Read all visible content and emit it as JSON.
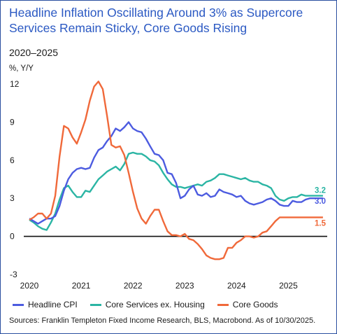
{
  "title": "Headline Inflation Oscillating Around 3% as Supercore Services Remain Sticky, Core Goods Rising",
  "subtitle": "2020–2025",
  "source": "Sources: Franklin Templeton Fixed Income Research, BLS, Macrobond. As of 10/30/2025.",
  "chart_data": {
    "type": "line",
    "ylabel": "%, Y/Y",
    "ylim": [
      -3,
      12
    ],
    "yticks": [
      -3,
      0,
      3,
      6,
      9,
      12
    ],
    "xlim": [
      2020.0,
      2025.75
    ],
    "xticks": [
      2020,
      2021,
      2022,
      2023,
      2024,
      2025
    ],
    "zero_line": true,
    "series": [
      {
        "name": "Headline CPI",
        "color": "#4c5be0",
        "end_label": "3.0",
        "x": [
          2020.0,
          2020.083,
          2020.167,
          2020.25,
          2020.333,
          2020.417,
          2020.5,
          2020.583,
          2020.667,
          2020.75,
          2020.833,
          2020.917,
          2021.0,
          2021.083,
          2021.167,
          2021.25,
          2021.333,
          2021.417,
          2021.5,
          2021.583,
          2021.667,
          2021.75,
          2021.833,
          2021.917,
          2022.0,
          2022.083,
          2022.167,
          2022.25,
          2022.333,
          2022.417,
          2022.5,
          2022.583,
          2022.667,
          2022.75,
          2022.833,
          2022.917,
          2023.0,
          2023.083,
          2023.167,
          2023.25,
          2023.333,
          2023.417,
          2023.5,
          2023.583,
          2023.667,
          2023.75,
          2023.833,
          2023.917,
          2024.0,
          2024.083,
          2024.167,
          2024.25,
          2024.333,
          2024.417,
          2024.5,
          2024.583,
          2024.667,
          2024.75,
          2024.833,
          2024.917,
          2025.0,
          2025.083,
          2025.167,
          2025.25,
          2025.333,
          2025.417,
          2025.5,
          2025.583,
          2025.667
        ],
        "values": [
          1.4,
          1.2,
          1.0,
          1.2,
          1.4,
          1.4,
          1.6,
          2.4,
          3.6,
          4.5,
          5.0,
          5.3,
          5.4,
          5.3,
          5.4,
          6.2,
          6.8,
          7.0,
          7.5,
          7.9,
          8.5,
          8.3,
          8.6,
          9.0,
          8.5,
          8.3,
          8.2,
          7.7,
          7.1,
          6.5,
          6.4,
          6.0,
          5.0,
          4.9,
          4.2,
          3.0,
          3.2,
          3.7,
          4.0,
          3.3,
          3.2,
          3.4,
          3.1,
          3.2,
          3.7,
          3.5,
          3.4,
          3.3,
          3.1,
          3.2,
          2.8,
          2.6,
          2.5,
          2.6,
          2.7,
          2.9,
          3.0,
          2.8,
          2.5,
          2.4,
          2.4,
          2.8,
          2.7,
          2.7,
          2.9,
          3.0,
          3.0,
          3.0,
          3.0
        ]
      },
      {
        "name": "Core Services ex. Housing",
        "color": "#2bb5a4",
        "end_label": "3.2",
        "x": [
          2020.0,
          2020.083,
          2020.167,
          2020.25,
          2020.333,
          2020.417,
          2020.5,
          2020.583,
          2020.667,
          2020.75,
          2020.833,
          2020.917,
          2021.0,
          2021.083,
          2021.167,
          2021.25,
          2021.333,
          2021.417,
          2021.5,
          2021.583,
          2021.667,
          2021.75,
          2021.833,
          2021.917,
          2022.0,
          2022.083,
          2022.167,
          2022.25,
          2022.333,
          2022.417,
          2022.5,
          2022.583,
          2022.667,
          2022.75,
          2022.833,
          2022.917,
          2023.0,
          2023.083,
          2023.167,
          2023.25,
          2023.333,
          2023.417,
          2023.5,
          2023.583,
          2023.667,
          2023.75,
          2023.833,
          2023.917,
          2024.0,
          2024.083,
          2024.167,
          2024.25,
          2024.333,
          2024.417,
          2024.5,
          2024.583,
          2024.667,
          2024.75,
          2024.833,
          2024.917,
          2025.0,
          2025.083,
          2025.167,
          2025.25,
          2025.333,
          2025.417,
          2025.5,
          2025.583,
          2025.667
        ],
        "values": [
          1.3,
          1.1,
          0.8,
          0.6,
          0.5,
          1.1,
          1.8,
          2.9,
          3.8,
          4.0,
          3.5,
          3.1,
          3.1,
          3.6,
          3.5,
          4.0,
          4.5,
          4.8,
          5.1,
          5.3,
          5.5,
          5.2,
          5.7,
          6.5,
          6.6,
          6.5,
          6.5,
          6.3,
          6.0,
          5.9,
          5.6,
          5.0,
          4.5,
          4.1,
          3.9,
          3.9,
          3.8,
          3.9,
          4.0,
          4.1,
          4.0,
          4.3,
          4.4,
          4.6,
          4.9,
          4.9,
          4.8,
          4.7,
          4.6,
          4.5,
          4.6,
          4.4,
          4.3,
          4.3,
          4.1,
          4.0,
          3.8,
          3.2,
          2.9,
          2.8,
          3.0,
          3.1,
          3.1,
          3.3,
          3.2,
          3.2,
          3.2,
          3.2,
          3.2
        ]
      },
      {
        "name": "Core Goods",
        "color": "#f0693a",
        "end_label": "1.5",
        "x": [
          2020.0,
          2020.083,
          2020.167,
          2020.25,
          2020.333,
          2020.417,
          2020.5,
          2020.583,
          2020.667,
          2020.75,
          2020.833,
          2020.917,
          2021.0,
          2021.083,
          2021.167,
          2021.25,
          2021.333,
          2021.417,
          2021.5,
          2021.583,
          2021.667,
          2021.75,
          2021.833,
          2021.917,
          2022.0,
          2022.083,
          2022.167,
          2022.25,
          2022.333,
          2022.417,
          2022.5,
          2022.583,
          2022.667,
          2022.75,
          2022.833,
          2022.917,
          2023.0,
          2023.083,
          2023.167,
          2023.25,
          2023.333,
          2023.417,
          2023.5,
          2023.583,
          2023.667,
          2023.75,
          2023.833,
          2023.917,
          2024.0,
          2024.083,
          2024.167,
          2024.25,
          2024.333,
          2024.417,
          2024.5,
          2024.583,
          2024.667,
          2024.75,
          2024.833,
          2024.917,
          2025.0,
          2025.083,
          2025.167,
          2025.25,
          2025.333,
          2025.417,
          2025.5,
          2025.583,
          2025.667
        ],
        "values": [
          1.3,
          1.5,
          1.8,
          1.8,
          1.4,
          1.8,
          3.2,
          6.3,
          8.7,
          8.5,
          7.8,
          7.3,
          8.2,
          9.2,
          10.7,
          11.8,
          12.2,
          11.6,
          9.5,
          7.2,
          7.0,
          7.1,
          6.4,
          5.0,
          3.5,
          2.2,
          1.4,
          1.0,
          1.6,
          2.1,
          2.1,
          1.2,
          0.4,
          0.1,
          0.1,
          0.0,
          0.2,
          -0.2,
          -0.3,
          -0.6,
          -1.0,
          -1.5,
          -1.7,
          -1.8,
          -1.8,
          -1.7,
          -0.9,
          -0.9,
          -0.5,
          -0.3,
          0.0,
          0.0,
          -0.1,
          0.0,
          0.3,
          0.4,
          0.8,
          1.2,
          1.5,
          1.5,
          1.5,
          1.5,
          1.5,
          1.5,
          1.5,
          1.5,
          1.5,
          1.5,
          1.5
        ]
      }
    ]
  }
}
